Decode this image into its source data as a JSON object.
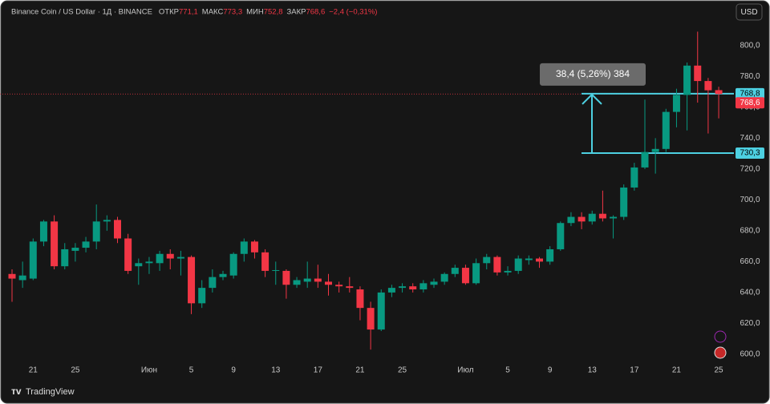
{
  "chart_data": {
    "type": "candlestick",
    "title": "Binance Coin / US Dollar · 1Д · BINANCE",
    "ohlc_legend": [
      {
        "label": "ОТКР",
        "value": "771,1"
      },
      {
        "label": "МАКС",
        "value": "773,3"
      },
      {
        "label": "МИН",
        "value": "752,8"
      },
      {
        "label": "ЗАКР",
        "value": "768,6"
      }
    ],
    "change": "−2,4 (−0,31%)",
    "currency": "USD",
    "brand": "TradingView",
    "up_color": "#089981",
    "down_color": "#f23645",
    "categories": [
      null,
      null,
      "21",
      null,
      null,
      null,
      "25",
      null,
      null,
      null,
      null,
      null,
      null,
      "Июн",
      null,
      null,
      null,
      "5",
      null,
      null,
      null,
      "9",
      null,
      null,
      null,
      "13",
      null,
      null,
      null,
      "17",
      null,
      null,
      null,
      "21",
      null,
      null,
      null,
      "25",
      null,
      null,
      null,
      null,
      null,
      "Июл",
      null,
      null,
      null,
      "5",
      null,
      null,
      null,
      "9",
      null,
      null,
      null,
      "13",
      null,
      null,
      null,
      "17",
      null,
      null,
      null,
      "21",
      null,
      null,
      null,
      "25"
    ],
    "open": [
      652,
      648,
      649,
      673,
      686,
      657,
      667,
      669,
      673,
      686,
      687,
      675,
      657,
      659,
      659,
      665,
      662,
      663,
      633,
      643,
      650,
      651,
      665,
      673,
      666,
      654,
      654,
      645,
      647,
      649,
      647,
      645,
      644,
      642,
      630,
      616,
      640,
      643,
      644,
      642,
      645,
      647,
      652,
      656,
      646,
      659,
      663,
      653,
      654,
      661,
      662,
      660,
      668,
      685,
      689,
      686,
      691,
      688,
      689,
      708,
      721,
      731,
      733,
      757,
      768,
      787,
      777,
      771.1
    ],
    "high": [
      655,
      660,
      675,
      687,
      690,
      672,
      672,
      676,
      697,
      690,
      689,
      678,
      662,
      663,
      667,
      668,
      667,
      664,
      648,
      655,
      654,
      666,
      675,
      674,
      668,
      660,
      655,
      650,
      660,
      658,
      652,
      647,
      650,
      644,
      634,
      642,
      645,
      646,
      646,
      648,
      649,
      653,
      658,
      658,
      662,
      665,
      664,
      657,
      664,
      664,
      663,
      670,
      686,
      692,
      692,
      693,
      706,
      690,
      710,
      724,
      765,
      740,
      759,
      772,
      789,
      809,
      779,
      773.3
    ],
    "low": [
      634,
      643,
      648,
      670,
      655,
      655,
      660,
      666,
      668,
      680,
      672,
      652,
      645,
      652,
      654,
      655,
      651,
      626,
      630,
      640,
      648,
      649,
      660,
      662,
      650,
      645,
      636,
      643,
      643,
      643,
      638,
      640,
      640,
      622,
      603,
      615,
      637,
      640,
      640,
      640,
      643,
      645,
      650,
      645,
      645,
      655,
      651,
      651,
      652,
      658,
      656,
      658,
      667,
      683,
      681,
      684,
      686,
      675,
      687,
      706,
      720,
      717,
      731,
      747,
      745,
      763,
      743,
      752.8
    ],
    "close": [
      649,
      651,
      673,
      686,
      657,
      668,
      669,
      673,
      686,
      687,
      675,
      654,
      659,
      660,
      665,
      662,
      663,
      633,
      643,
      650,
      652,
      665,
      673,
      666,
      654,
      654.5,
      645,
      648,
      649,
      647,
      645,
      644,
      643,
      630,
      616,
      640,
      643,
      644,
      642,
      646,
      647,
      652,
      656,
      646,
      659,
      663,
      653,
      654,
      662,
      662,
      660,
      668,
      685,
      689,
      686,
      691,
      688,
      689,
      708,
      721,
      731,
      733,
      757,
      768,
      787,
      777,
      771,
      768.6
    ],
    "ylim": [
      593.2,
      826.9
    ],
    "yticks": [
      {
        "value": 600,
        "label": "600,0"
      },
      {
        "value": 620,
        "label": "620,0"
      },
      {
        "value": 640,
        "label": "640,0"
      },
      {
        "value": 660,
        "label": "660,0"
      },
      {
        "value": 680,
        "label": "680,0"
      },
      {
        "value": 700,
        "label": "700,0"
      },
      {
        "value": 720,
        "label": "720,0"
      },
      {
        "value": 740,
        "label": "740,0"
      },
      {
        "value": 760,
        "label": "760,0"
      },
      {
        "value": 780,
        "label": "780,0"
      },
      {
        "value": 800,
        "label": "800,0"
      }
    ],
    "grid": false,
    "price_labels": [
      {
        "value": 768.8,
        "label": "768,8",
        "color": "#4dd0e1"
      },
      {
        "value": 768.6,
        "label": "768,6",
        "color": "#f23645"
      },
      {
        "value": 730.3,
        "label": "730,3",
        "color": "#4dd0e1"
      }
    ],
    "measure": {
      "text": "38,4 (5,26%) 384",
      "from": 730.3,
      "to": 768.8,
      "color": "#4dd0e1"
    }
  }
}
